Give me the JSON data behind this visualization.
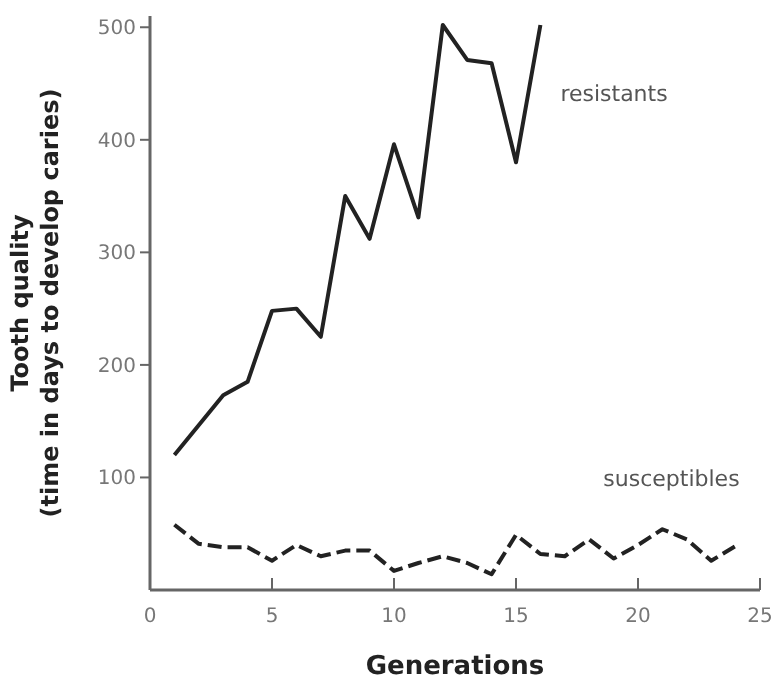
{
  "chart_data": {
    "type": "line",
    "xlabel": "Generations",
    "ylabel": "Tooth quality\n(time in days to develop caries)",
    "xlim": [
      0,
      25
    ],
    "ylim": [
      0,
      510
    ],
    "xticks": [
      0,
      5,
      10,
      15,
      20,
      25
    ],
    "yticks": [
      100,
      200,
      300,
      400,
      500
    ],
    "marker": "none",
    "series": [
      {
        "name": "resistants",
        "color": "#222222",
        "line_style": "solid",
        "x": [
          1,
          3,
          4,
          5,
          6,
          7,
          8,
          9,
          10,
          11,
          12,
          13,
          14,
          15,
          16
        ],
        "values": [
          120,
          173,
          185,
          248,
          250,
          225,
          350,
          312,
          396,
          331,
          502,
          471,
          468,
          380,
          502
        ]
      },
      {
        "name": "susceptibles",
        "color": "#222222",
        "line_style": "dashed",
        "x": [
          1,
          2,
          3,
          4,
          5,
          6,
          7,
          8,
          9,
          10,
          11,
          12,
          13,
          14,
          15,
          16,
          17,
          18,
          19,
          20,
          21,
          22,
          23,
          24
        ],
        "values": [
          58,
          41,
          38,
          38,
          26,
          40,
          30,
          35,
          35,
          17,
          24,
          30,
          24,
          14,
          49,
          32,
          30,
          45,
          28,
          40,
          54,
          45,
          26,
          39
        ]
      }
    ]
  }
}
